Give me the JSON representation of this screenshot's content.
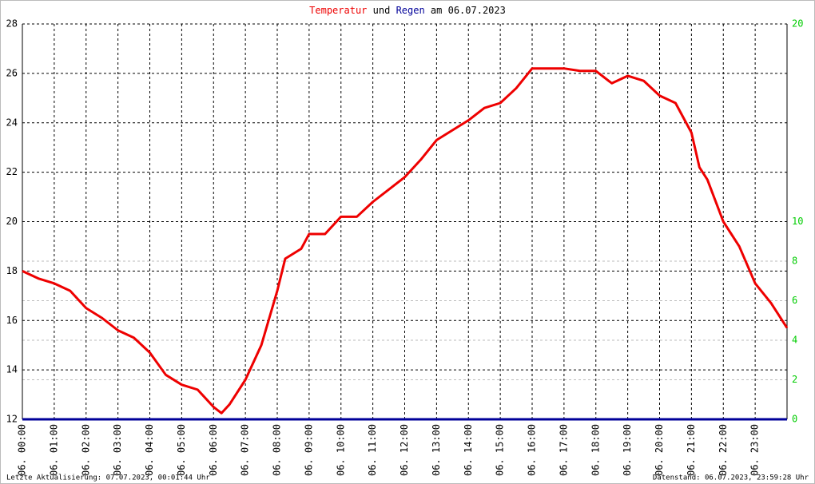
{
  "chart_data": {
    "type": "line",
    "title": {
      "part1": "Temperatur",
      "part2": "und",
      "part3": "Regen",
      "part4": "am 06.07.2023"
    },
    "footer_left": "Letzte Aktualisierung: 07.07.2023, 00:01:44 Uhr",
    "footer_right": "Datenstand: 06.07.2023, 23:59:28 Uhr",
    "x": [
      0,
      0.5,
      1,
      1.5,
      2,
      2.5,
      3,
      3.5,
      4,
      4.5,
      5,
      5.5,
      6,
      6.25,
      6.5,
      7,
      7.5,
      8,
      8.25,
      8.75,
      9,
      9.5,
      10,
      10.5,
      11,
      11.5,
      12,
      12.5,
      13,
      13.5,
      14,
      14.5,
      15,
      15.5,
      16,
      16.5,
      17,
      17.5,
      18,
      18.5,
      19,
      19.5,
      20,
      20.5,
      21,
      21.25,
      21.5,
      22,
      22.5,
      23,
      23.5,
      24
    ],
    "xlim": [
      0,
      24
    ],
    "xticks": [
      {
        "value": 0,
        "label": "06. 00:00"
      },
      {
        "value": 1,
        "label": "06. 01:00"
      },
      {
        "value": 2,
        "label": "06. 02:00"
      },
      {
        "value": 3,
        "label": "06. 03:00"
      },
      {
        "value": 4,
        "label": "06. 04:00"
      },
      {
        "value": 5,
        "label": "06. 05:00"
      },
      {
        "value": 6,
        "label": "06. 06:00"
      },
      {
        "value": 7,
        "label": "06. 07:00"
      },
      {
        "value": 8,
        "label": "06. 08:00"
      },
      {
        "value": 9,
        "label": "06. 09:00"
      },
      {
        "value": 10,
        "label": "06. 10:00"
      },
      {
        "value": 11,
        "label": "06. 11:00"
      },
      {
        "value": 12,
        "label": "06. 12:00"
      },
      {
        "value": 13,
        "label": "06. 13:00"
      },
      {
        "value": 14,
        "label": "06. 14:00"
      },
      {
        "value": 15,
        "label": "06. 15:00"
      },
      {
        "value": 16,
        "label": "06. 16:00"
      },
      {
        "value": 17,
        "label": "06. 17:00"
      },
      {
        "value": 18,
        "label": "06. 18:00"
      },
      {
        "value": 19,
        "label": "06. 19:00"
      },
      {
        "value": 20,
        "label": "06. 20:00"
      },
      {
        "value": 21,
        "label": "06. 21:00"
      },
      {
        "value": 22,
        "label": "06. 22:00"
      },
      {
        "value": 23,
        "label": "06. 23:00"
      }
    ],
    "ylim": [
      12,
      28
    ],
    "yticks": [
      12,
      14,
      16,
      18,
      20,
      22,
      24,
      26,
      28
    ],
    "y2lim": [
      0,
      20
    ],
    "y2ticks": [
      0,
      2,
      4,
      6,
      8,
      10,
      20
    ],
    "grid": true,
    "series": [
      {
        "name": "Temperatur",
        "color": "#ee0000",
        "values": [
          18.0,
          17.7,
          17.5,
          17.2,
          16.5,
          16.1,
          15.6,
          15.3,
          14.7,
          13.8,
          13.4,
          13.2,
          12.5,
          12.25,
          12.6,
          13.6,
          15.0,
          17.2,
          18.5,
          18.9,
          19.5,
          19.5,
          20.2,
          20.2,
          20.8,
          21.3,
          21.8,
          22.5,
          23.3,
          23.7,
          24.1,
          24.6,
          24.8,
          25.4,
          26.2,
          26.2,
          26.2,
          26.1,
          26.1,
          25.6,
          25.9,
          25.7,
          25.1,
          24.8,
          23.6,
          22.2,
          21.7,
          20.0,
          19.0,
          17.5,
          16.7,
          15.7
        ]
      },
      {
        "name": "Regen",
        "color": "#000099",
        "axis": "y2",
        "values": [
          0,
          0,
          0,
          0,
          0,
          0,
          0,
          0,
          0,
          0,
          0,
          0,
          0,
          0,
          0,
          0,
          0,
          0,
          0,
          0,
          0,
          0,
          0,
          0,
          0,
          0,
          0,
          0,
          0,
          0,
          0,
          0,
          0,
          0,
          0,
          0,
          0,
          0,
          0,
          0,
          0,
          0,
          0,
          0,
          0,
          0,
          0,
          0,
          0,
          0,
          0,
          0
        ]
      }
    ]
  }
}
